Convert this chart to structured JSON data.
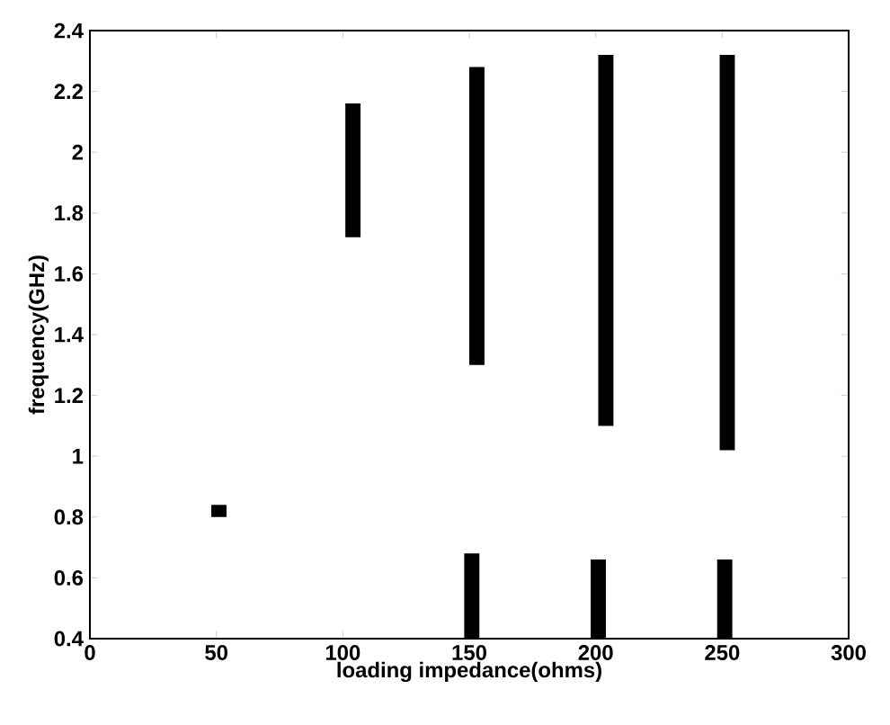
{
  "chart_data": {
    "type": "bar",
    "xlabel": "loading impedance(ohms)",
    "ylabel": "frequency(GHz)",
    "x": [
      51,
      104,
      151,
      153,
      201,
      204,
      251,
      252
    ],
    "base": [
      0.8,
      1.72,
      0.4,
      1.3,
      0.4,
      1.1,
      0.4,
      1.02
    ],
    "values": [
      0.04,
      0.44,
      0.28,
      0.98,
      0.26,
      1.22,
      0.26,
      1.3
    ],
    "color": "#000000",
    "xlim": [
      0,
      300
    ],
    "ylim": [
      0.4,
      2.4
    ],
    "xticks": [
      0,
      50,
      100,
      150,
      200,
      250,
      300
    ],
    "yticks": [
      0.4,
      0.6,
      0.8,
      1,
      1.2,
      1.4,
      1.6,
      1.8,
      2,
      2.2,
      2.4
    ]
  }
}
